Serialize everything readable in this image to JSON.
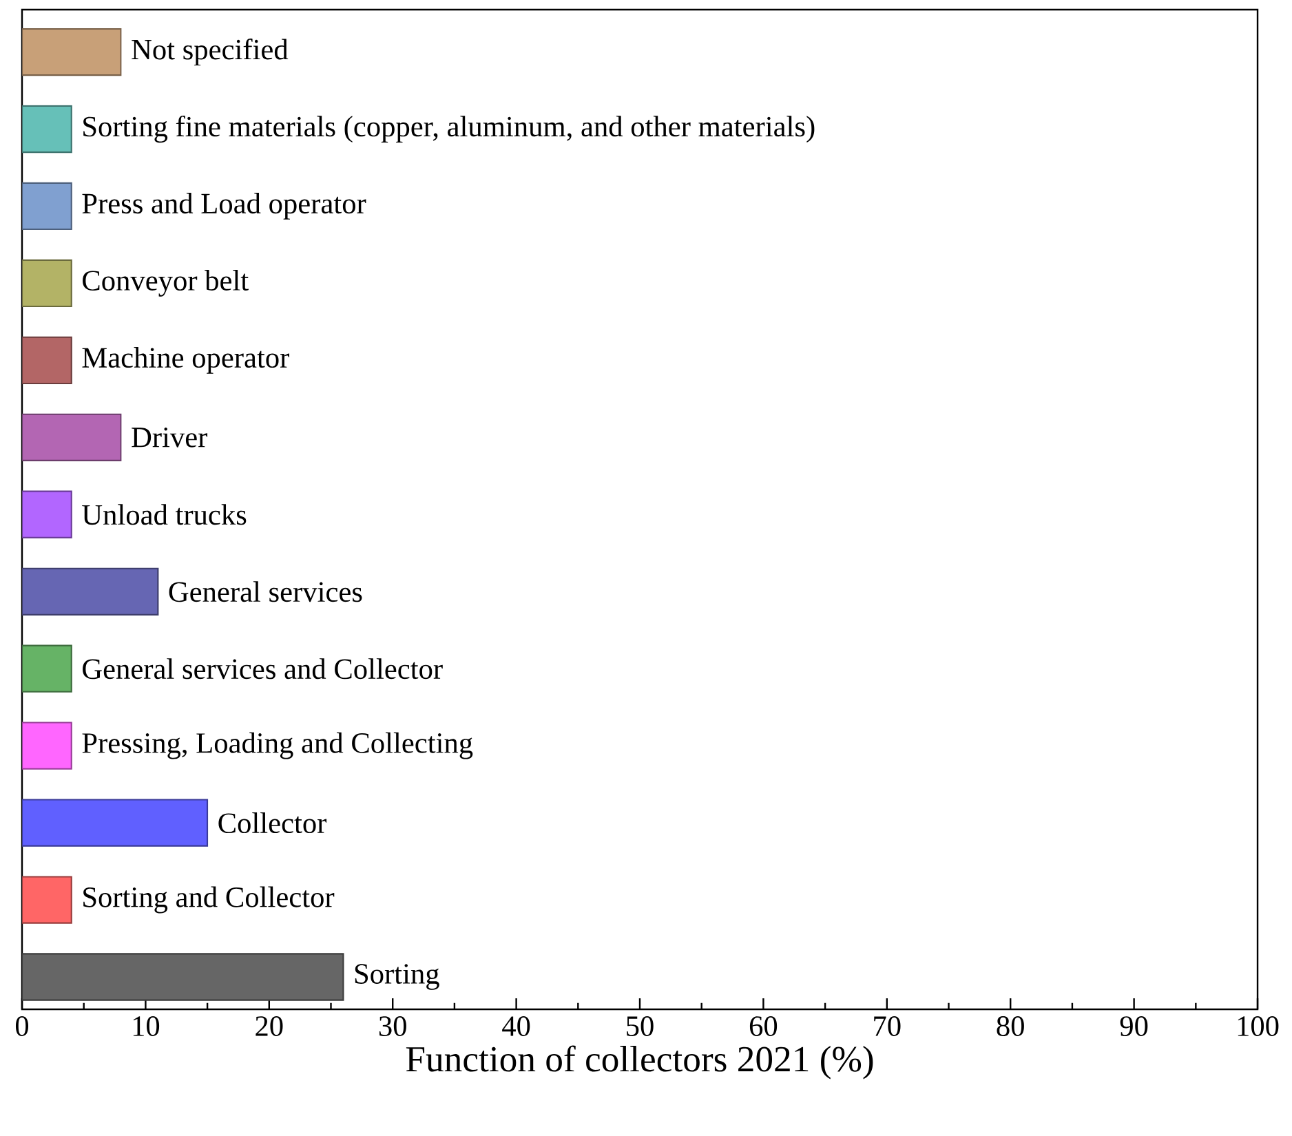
{
  "chart_data": {
    "type": "bar",
    "orientation": "horizontal",
    "xlabel": "Function of collectors 2021 (%)",
    "categories": [
      "Not specified",
      "Sorting fine materials (copper, aluminum, and other materials)",
      "Press and Load operator",
      "Conveyor belt",
      "Machine operator",
      "Driver",
      "Unload trucks",
      "General services",
      "General services and Collector",
      "Pressing, Loading and Collecting",
      "Collector",
      "Sorting and Collector",
      "Sorting"
    ],
    "values": [
      8,
      4,
      4,
      4,
      4,
      8,
      4,
      11,
      4,
      4,
      15,
      4,
      26
    ],
    "colors": [
      "#c8a078",
      "#66c0b8",
      "#80a0d0",
      "#b3b366",
      "#b36666",
      "#b366b3",
      "#b266ff",
      "#6666b3",
      "#66b366",
      "#ff66ff",
      "#6060ff",
      "#ff6666",
      "#666666"
    ],
    "xlim": [
      0,
      100
    ],
    "xticks": [
      0,
      10,
      20,
      30,
      40,
      50,
      60,
      70,
      80,
      90,
      100
    ],
    "tick_labels": "x",
    "grid": false
  }
}
